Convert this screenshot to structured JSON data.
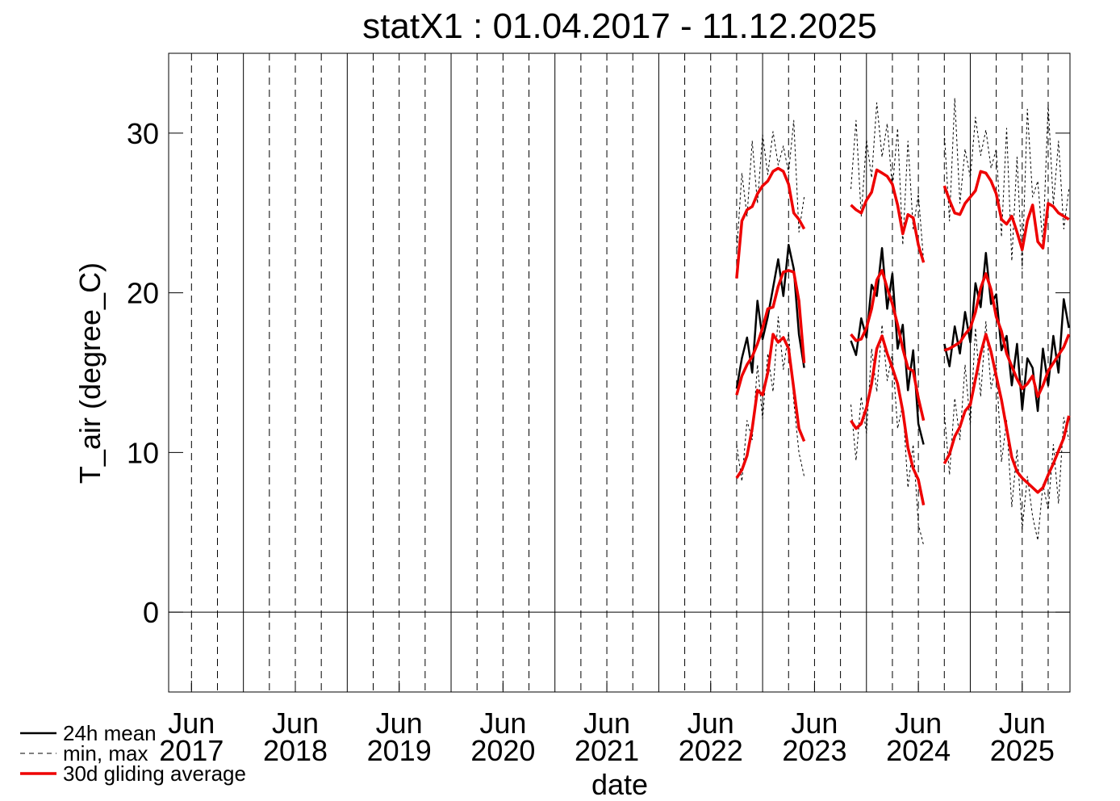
{
  "chart_data": {
    "type": "line",
    "title": "statX1 : 01.04.2017 - 11.12.2025",
    "xlabel": "date",
    "ylabel": "T_air (degree_C)",
    "xlim": [
      2017.28,
      2025.96
    ],
    "ylim": [
      -5,
      35
    ],
    "yticks": [
      0,
      10,
      20,
      30
    ],
    "hline": 0,
    "xticks": [
      {
        "value": 2017.5,
        "label": [
          "Jun",
          "2017"
        ]
      },
      {
        "value": 2018.5,
        "label": [
          "Jun",
          "2018"
        ]
      },
      {
        "value": 2019.5,
        "label": [
          "Jun",
          "2019"
        ]
      },
      {
        "value": 2020.5,
        "label": [
          "Jun",
          "2020"
        ]
      },
      {
        "value": 2021.5,
        "label": [
          "Jun",
          "2021"
        ]
      },
      {
        "value": 2022.5,
        "label": [
          "Jun",
          "2022"
        ]
      },
      {
        "value": 2023.5,
        "label": [
          "Jun",
          "2023"
        ]
      },
      {
        "value": 2024.5,
        "label": [
          "Jun",
          "2024"
        ]
      },
      {
        "value": 2025.5,
        "label": [
          "Jun",
          "2025"
        ]
      }
    ],
    "xgrid_major": [
      2018,
      2019,
      2020,
      2021,
      2022,
      2023,
      2024,
      2025
    ],
    "xgrid_minor": [
      2017.5,
      2017.75,
      2018.25,
      2018.5,
      2018.75,
      2019.25,
      2019.5,
      2019.75,
      2020.25,
      2020.5,
      2020.75,
      2021.25,
      2021.5,
      2021.75,
      2022.25,
      2022.5,
      2022.75,
      2023.25,
      2023.5,
      2023.75,
      2024.25,
      2024.5,
      2024.75,
      2025.25,
      2025.5,
      2025.75
    ],
    "legend": "bottom-left",
    "x": [
      2022.75,
      2022.8,
      2022.85,
      2022.9,
      2022.95,
      2023,
      2023.05,
      2023.1,
      2023.15,
      2023.2,
      2023.25,
      2023.3,
      2023.35,
      2023.4,
      2023.45,
      2023.5,
      2023.55,
      2023.6,
      2023.65,
      2023.7,
      2023.75,
      2023.8,
      2023.85,
      2023.9,
      2023.95,
      2024,
      2024.05,
      2024.1,
      2024.15,
      2024.2,
      2024.25,
      2024.3,
      2024.35,
      2024.4,
      2024.45,
      2024.5,
      2024.55,
      2024.6,
      2024.65,
      2024.7,
      2024.75,
      2024.8,
      2024.85,
      2024.9,
      2024.95,
      2025,
      2025.05,
      2025.1,
      2025.15,
      2025.2,
      2025.25,
      2025.3,
      2025.35,
      2025.4,
      2025.45,
      2025.5,
      2025.55,
      2025.6,
      2025.65,
      2025.7,
      2025.75,
      2025.8,
      2025.85,
      2025.9,
      2025.95
    ],
    "series": [
      {
        "name": "min, max",
        "color": "#000000",
        "style": "dashed",
        "values": [
          10.5,
          8.2,
          12.0,
          10.8,
          15.5,
          12.1,
          16.2,
          13.8,
          18.5,
          15.2,
          17.5,
          13.2,
          10.0,
          8.5,
          null,
          null,
          null,
          null,
          null,
          null,
          null,
          null,
          13.0,
          9.5,
          13.5,
          11.2,
          16.5,
          13.8,
          18.0,
          14.5,
          16.2,
          11.5,
          13.0,
          7.8,
          10.5,
          5.5,
          4.2,
          null,
          null,
          null,
          12.5,
          8.6,
          13.4,
          10.8,
          15.5,
          11.7,
          17.8,
          13.5,
          18.2,
          14.0,
          15.5,
          9.4,
          12.0,
          6.6,
          10.2,
          5.2,
          8.5,
          6.0,
          4.5,
          8.0,
          6.4,
          10.5,
          6.8,
          12.2,
          10.8
        ]
      },
      {
        "name": "min, max",
        "color": "#000000",
        "style": "dashed",
        "values": [
          22.5,
          27.5,
          24.8,
          29.5,
          25.6,
          29.9,
          27.4,
          30.1,
          28.0,
          29.2,
          27.5,
          30.8,
          23.8,
          26.0,
          null,
          null,
          null,
          null,
          null,
          null,
          null,
          null,
          26.5,
          30.8,
          24.8,
          29.6,
          27.2,
          31.9,
          28.5,
          30.6,
          26.5,
          30.3,
          23.0,
          29.5,
          24.0,
          26.2,
          22.0,
          null,
          null,
          null,
          30.0,
          24.5,
          32.2,
          25.6,
          29.0,
          27.2,
          31.0,
          28.6,
          30.2,
          27.8,
          29.0,
          23.5,
          30.3,
          22.0,
          28.5,
          21.5,
          31.5,
          26.0,
          27.0,
          23.0,
          31.8,
          25.5,
          29.5,
          24.0,
          26.5
        ]
      },
      {
        "name": "24h mean",
        "color": "#000000",
        "style": "solid",
        "values": [
          14.0,
          15.9,
          17.2,
          15.0,
          19.5,
          17.1,
          18.5,
          20.3,
          22.1,
          19.8,
          23.0,
          21.5,
          17.4,
          15.3,
          null,
          null,
          null,
          null,
          null,
          null,
          null,
          null,
          17.0,
          16.1,
          18.4,
          17.2,
          20.5,
          19.8,
          22.8,
          19.0,
          21.2,
          16.5,
          18.0,
          13.9,
          16.4,
          11.8,
          10.5,
          null,
          null,
          null,
          16.8,
          15.4,
          17.9,
          16.2,
          18.8,
          16.9,
          20.6,
          19.1,
          22.5,
          19.3,
          19.9,
          16.4,
          17.3,
          14.2,
          16.8,
          12.7,
          15.9,
          15.3,
          12.6,
          16.5,
          14.2,
          17.3,
          15.0,
          19.6,
          17.8
        ]
      },
      {
        "name": "30d gliding average",
        "color": "#ee0000",
        "style": "thick",
        "values": [
          13.6,
          14.8,
          15.5,
          16.0,
          16.8,
          17.8,
          19.0,
          19.1,
          20.4,
          21.3,
          21.4,
          21.3,
          19.5,
          15.6,
          null,
          null,
          null,
          null,
          null,
          null,
          null,
          null,
          17.4,
          17.0,
          17.1,
          17.8,
          19.0,
          20.8,
          21.4,
          20.3,
          19.3,
          18.0,
          16.5,
          15.3,
          15.1,
          13.4,
          12.0,
          null,
          null,
          null,
          16.4,
          16.5,
          16.7,
          16.9,
          17.4,
          17.8,
          18.8,
          20.3,
          21.2,
          20.2,
          18.5,
          17.6,
          16.2,
          15.4,
          14.6,
          14.0,
          14.3,
          14.8,
          13.5,
          14.2,
          15.1,
          15.6,
          16.1,
          16.6,
          17.4
        ]
      },
      {
        "name": "30d gliding average",
        "color": "#ee0000",
        "style": "thick",
        "values": [
          20.9,
          24.5,
          25.2,
          25.4,
          26.2,
          26.7,
          27.0,
          27.6,
          27.8,
          27.6,
          26.8,
          25.0,
          24.6,
          24.0,
          null,
          null,
          null,
          null,
          null,
          null,
          null,
          null,
          25.5,
          25.2,
          25.0,
          25.8,
          26.3,
          27.7,
          27.5,
          27.3,
          26.8,
          25.5,
          23.7,
          24.9,
          24.7,
          23.0,
          21.9,
          null,
          null,
          null,
          26.7,
          25.8,
          25.0,
          24.9,
          25.6,
          26.0,
          26.4,
          27.6,
          27.5,
          27.0,
          26.2,
          24.6,
          24.3,
          24.8,
          23.8,
          22.7,
          24.5,
          25.5,
          23.2,
          22.8,
          25.6,
          25.4,
          25.0,
          24.8,
          24.6
        ]
      },
      {
        "name": "30d gliding average",
        "color": "#ee0000",
        "style": "thick",
        "values": [
          8.4,
          8.9,
          9.8,
          11.5,
          13.9,
          13.6,
          15.0,
          17.4,
          16.9,
          17.2,
          16.5,
          14.0,
          11.5,
          10.7,
          null,
          null,
          null,
          null,
          null,
          null,
          null,
          null,
          12.0,
          11.5,
          11.8,
          12.8,
          14.3,
          16.5,
          17.3,
          16.2,
          15.3,
          14.3,
          12.6,
          10.3,
          9.0,
          8.3,
          6.7,
          null,
          null,
          null,
          9.3,
          9.9,
          11.0,
          11.6,
          12.6,
          13.0,
          14.6,
          16.2,
          17.4,
          16.3,
          14.8,
          13.3,
          11.5,
          9.7,
          8.8,
          8.4,
          8.1,
          7.8,
          7.5,
          7.8,
          8.6,
          9.3,
          10.1,
          10.9,
          12.3
        ]
      }
    ]
  }
}
